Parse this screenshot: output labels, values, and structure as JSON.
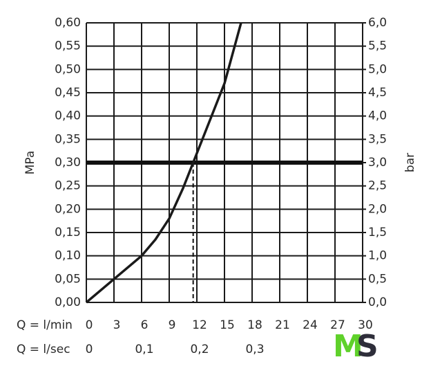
{
  "chart_data": {
    "type": "line",
    "x_label": "Q = l/min",
    "x2_label": "Q = l/sec",
    "y_label": "MPa",
    "y2_label": "bar",
    "xlim": [
      0,
      30
    ],
    "xticks": [
      0,
      3,
      6,
      9,
      12,
      15,
      18,
      21,
      24,
      27,
      30
    ],
    "x2lim": [
      0,
      0.5
    ],
    "x2ticks": [
      0,
      {
        "value": 0.1,
        "label": "0,1"
      },
      {
        "value": 0.2,
        "label": "0,2"
      },
      {
        "value": 0.3,
        "label": "0,3"
      }
    ],
    "ylim": [
      0,
      0.6
    ],
    "yticks": [
      {
        "value": 0,
        "label": "0,00"
      },
      {
        "value": 0.05,
        "label": "0,05"
      },
      {
        "value": 0.1,
        "label": "0,10"
      },
      {
        "value": 0.15,
        "label": "0,15"
      },
      {
        "value": 0.2,
        "label": "0,20"
      },
      {
        "value": 0.25,
        "label": "0,25"
      },
      {
        "value": 0.3,
        "label": "0,30"
      },
      {
        "value": 0.35,
        "label": "0,35"
      },
      {
        "value": 0.4,
        "label": "0,40"
      },
      {
        "value": 0.45,
        "label": "0,45"
      },
      {
        "value": 0.5,
        "label": "0,50"
      },
      {
        "value": 0.55,
        "label": "0,55"
      },
      {
        "value": 0.6,
        "label": "0,60"
      }
    ],
    "y2lim": [
      0,
      6
    ],
    "y2ticks": [
      {
        "value": 0,
        "label": "0,0"
      },
      {
        "value": 0.5,
        "label": "0,5"
      },
      {
        "value": 1,
        "label": "1,0"
      },
      {
        "value": 1.5,
        "label": "1,5"
      },
      {
        "value": 2,
        "label": "2,0"
      },
      {
        "value": 2.5,
        "label": "2,5"
      },
      {
        "value": 3,
        "label": "3,0"
      },
      {
        "value": 3.5,
        "label": "3,5"
      },
      {
        "value": 4,
        "label": "4,0"
      },
      {
        "value": 4.5,
        "label": "4,5"
      },
      {
        "value": 5,
        "label": "5,0"
      },
      {
        "value": 5.5,
        "label": "5,5"
      },
      {
        "value": 6,
        "label": "6,0"
      }
    ],
    "grid": true,
    "color": "#1a1a1a",
    "x": [
      0,
      3,
      6,
      7.5,
      9,
      10.5,
      11.6,
      13,
      15,
      16.8
    ],
    "values": [
      0,
      0.05,
      0.1,
      0.135,
      0.18,
      0.245,
      0.3,
      0.37,
      0.47,
      0.6
    ],
    "reference_y": 0.3,
    "reference_x": 11.6
  },
  "logo": {
    "first": "M",
    "second": "S"
  }
}
